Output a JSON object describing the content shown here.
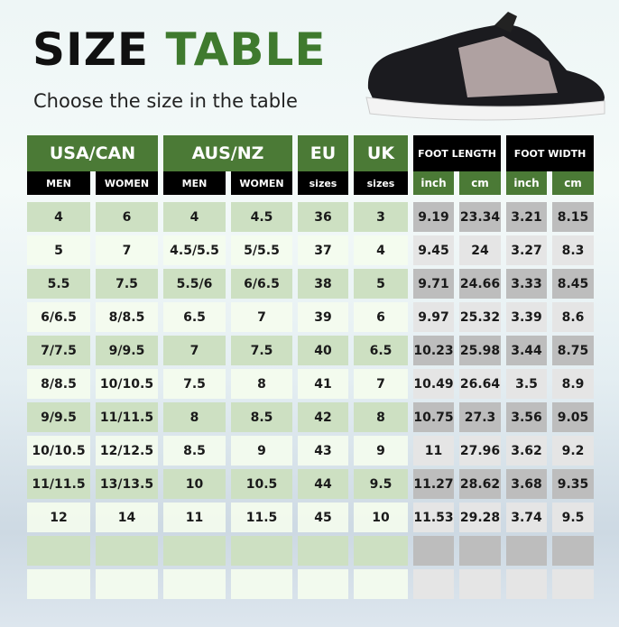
{
  "title": {
    "part1": "SIZE",
    "part2": "TABLE"
  },
  "subtitle": "Choose the size in the table",
  "colors": {
    "green": "#4b7a36",
    "black": "#000000",
    "light_green": "#cde0c2",
    "grey": "#bdbdbd"
  },
  "header_groups": [
    {
      "label": "USA/CAN",
      "span": 2
    },
    {
      "label": "AUS/NZ",
      "span": 2
    },
    {
      "label": "EU",
      "span": 1
    },
    {
      "label": "UK",
      "span": 1
    },
    {
      "label": "FOOT LENGTH",
      "span": 2
    },
    {
      "label": "FOOT WIDTH",
      "span": 2
    }
  ],
  "sub_headers": [
    "MEN",
    "WOMEN",
    "MEN",
    "WOMEN",
    "sizes",
    "sizes",
    "inch",
    "cm",
    "inch",
    "cm"
  ],
  "rows": [
    [
      "4",
      "6",
      "4",
      "4.5",
      "36",
      "3",
      "9.19",
      "23.34",
      "3.21",
      "8.15"
    ],
    [
      "5",
      "7",
      "4.5/5.5",
      "5/5.5",
      "37",
      "4",
      "9.45",
      "24",
      "3.27",
      "8.3"
    ],
    [
      "5.5",
      "7.5",
      "5.5/6",
      "6/6.5",
      "38",
      "5",
      "9.71",
      "24.66",
      "3.33",
      "8.45"
    ],
    [
      "6/6.5",
      "8/8.5",
      "6.5",
      "7",
      "39",
      "6",
      "9.97",
      "25.32",
      "3.39",
      "8.6"
    ],
    [
      "7/7.5",
      "9/9.5",
      "7",
      "7.5",
      "40",
      "6.5",
      "10.23",
      "25.98",
      "3.44",
      "8.75"
    ],
    [
      "8/8.5",
      "10/10.5",
      "7.5",
      "8",
      "41",
      "7",
      "10.49",
      "26.64",
      "3.5",
      "8.9"
    ],
    [
      "9/9.5",
      "11/11.5",
      "8",
      "8.5",
      "42",
      "8",
      "10.75",
      "27.3",
      "3.56",
      "9.05"
    ],
    [
      "10/10.5",
      "12/12.5",
      "8.5",
      "9",
      "43",
      "9",
      "11",
      "27.96",
      "3.62",
      "9.2"
    ],
    [
      "11/11.5",
      "13/13.5",
      "10",
      "10.5",
      "44",
      "9.5",
      "11.27",
      "28.62",
      "3.68",
      "9.35"
    ],
    [
      "12",
      "14",
      "11",
      "11.5",
      "45",
      "10",
      "11.53",
      "29.28",
      "3.74",
      "9.5"
    ],
    [
      "",
      "",
      "",
      "",
      "",
      "",
      "",
      "",
      "",
      ""
    ],
    [
      "",
      "",
      "",
      "",
      "",
      "",
      "",
      "",
      "",
      ""
    ]
  ]
}
